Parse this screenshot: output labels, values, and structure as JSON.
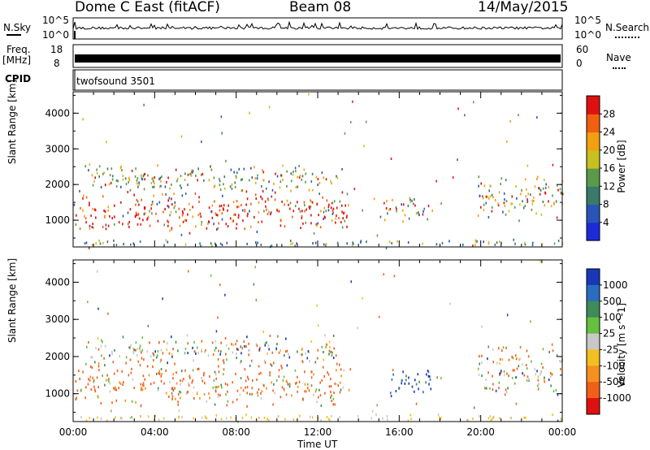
{
  "header": {
    "station": "Dome C East (fitACF)",
    "beam": "Beam 08",
    "date": "14/May/2015"
  },
  "status_panels": {
    "nsky_label": "N.Sky",
    "nsky_top": "10^5",
    "nsky_bottom": "10^0",
    "nsearch_label": "N.Search",
    "nsearch_top": "10^5",
    "nsearch_bottom": "10^0",
    "freq_label_1": "Freq.",
    "freq_label_2": "[MHz]",
    "freq_top": "18",
    "freq_bottom": "8",
    "nave_label": "Nave",
    "nave_top": "60",
    "nave_bottom": "0",
    "cpid_label": "CPID",
    "cpid_value": "twofsound 3501"
  },
  "chart_data": [
    {
      "type": "heatmap",
      "title": "",
      "xlabel": "Time UT",
      "ylabel": "Slant Range [km]",
      "x_ticks": [
        "00:00",
        "04:00",
        "08:00",
        "12:00",
        "16:00",
        "20:00",
        "00:00"
      ],
      "y_ticks": [
        "1000",
        "2000",
        "3000",
        "4000"
      ],
      "ylim": [
        250,
        4600
      ],
      "xlim_hours": [
        0,
        24
      ],
      "colorbar_label": "Power [dB]",
      "colorbar_ticks": [
        "4",
        "8",
        "12",
        "16",
        "20",
        "24",
        "28"
      ],
      "colorbar_colors": [
        "#1c2bd8",
        "#2a55b8",
        "#3a7a6a",
        "#5a9a4a",
        "#c8c020",
        "#f2a010",
        "#f06010",
        "#e01010"
      ],
      "scatter_regions": [
        {
          "t0": 0.0,
          "t1": 13.6,
          "r0": 600,
          "r1": 1900,
          "level": "high"
        },
        {
          "t0": 0.5,
          "t1": 13.0,
          "r0": 1700,
          "r1": 2600,
          "level": "mixed"
        },
        {
          "t0": 15.1,
          "t1": 17.6,
          "r0": 900,
          "r1": 1700,
          "level": "mixed"
        },
        {
          "t0": 19.8,
          "t1": 24.0,
          "r0": 900,
          "r1": 2300,
          "level": "mixed"
        },
        {
          "t0": 0.0,
          "t1": 24.0,
          "r0": 250,
          "r1": 450,
          "level": "low"
        }
      ]
    },
    {
      "type": "heatmap",
      "title": "",
      "xlabel": "Time UT",
      "ylabel": "Slant Range [km]",
      "x_ticks": [
        "00:00",
        "04:00",
        "08:00",
        "12:00",
        "16:00",
        "20:00",
        "00:00"
      ],
      "y_ticks": [
        "1000",
        "2000",
        "3000",
        "4000"
      ],
      "ylim": [
        250,
        4600
      ],
      "xlim_hours": [
        0,
        24
      ],
      "colorbar_label": "Velocity [m s^-1]",
      "colorbar_ticks": [
        "1000",
        "500",
        "100",
        "25",
        "-25",
        "-100",
        "-500",
        "-1000"
      ],
      "colorbar_colors": [
        "#1838b8",
        "#2a6cc0",
        "#3f8a58",
        "#66c040",
        "#c8c8c8",
        "#f2c020",
        "#f59020",
        "#f06018",
        "#e01010"
      ],
      "scatter_regions": [
        {
          "t0": 0.0,
          "t1": 13.6,
          "r0": 600,
          "r1": 1900,
          "level": "negative"
        },
        {
          "t0": 0.5,
          "t1": 13.0,
          "r0": 1700,
          "r1": 2600,
          "level": "mixed"
        },
        {
          "t0": 15.1,
          "t1": 17.6,
          "r0": 900,
          "r1": 1700,
          "level": "positive"
        },
        {
          "t0": 19.8,
          "t1": 24.0,
          "r0": 900,
          "r1": 2300,
          "level": "mixed"
        },
        {
          "t0": 0.0,
          "t1": 24.0,
          "r0": 250,
          "r1": 450,
          "level": "ground"
        }
      ]
    }
  ]
}
